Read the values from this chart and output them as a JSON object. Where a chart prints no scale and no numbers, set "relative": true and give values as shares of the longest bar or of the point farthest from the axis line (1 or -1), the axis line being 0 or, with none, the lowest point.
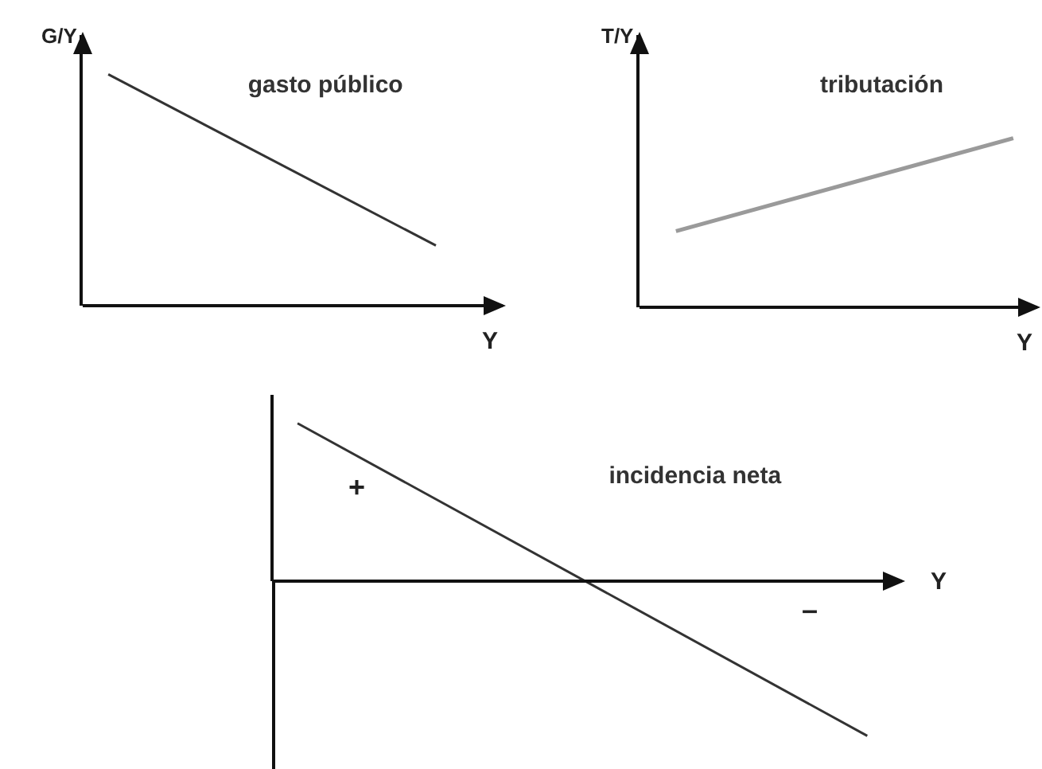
{
  "chart_data": [
    {
      "type": "line",
      "relative": true,
      "title": "gasto público",
      "xlabel": "Y",
      "ylabel": "G/Y",
      "categories": [
        null,
        null
      ],
      "series": [
        {
          "color": "#333333",
          "values": [
            1,
            0.26
          ]
        }
      ]
    },
    {
      "type": "line",
      "relative": true,
      "title": "tributación",
      "xlabel": "Y",
      "ylabel": "T/Y",
      "categories": [
        null,
        null
      ],
      "series": [
        {
          "color": "#9a9a9a",
          "values": [
            0.45,
            1
          ]
        }
      ]
    },
    {
      "type": "line",
      "relative": true,
      "title": "incidencia neta",
      "xlabel": "Y",
      "categories": [
        null,
        null
      ],
      "series": [
        {
          "color": "#333333",
          "values": [
            1,
            -0.98
          ]
        }
      ],
      "annotations": [
        "+",
        "–"
      ]
    }
  ]
}
